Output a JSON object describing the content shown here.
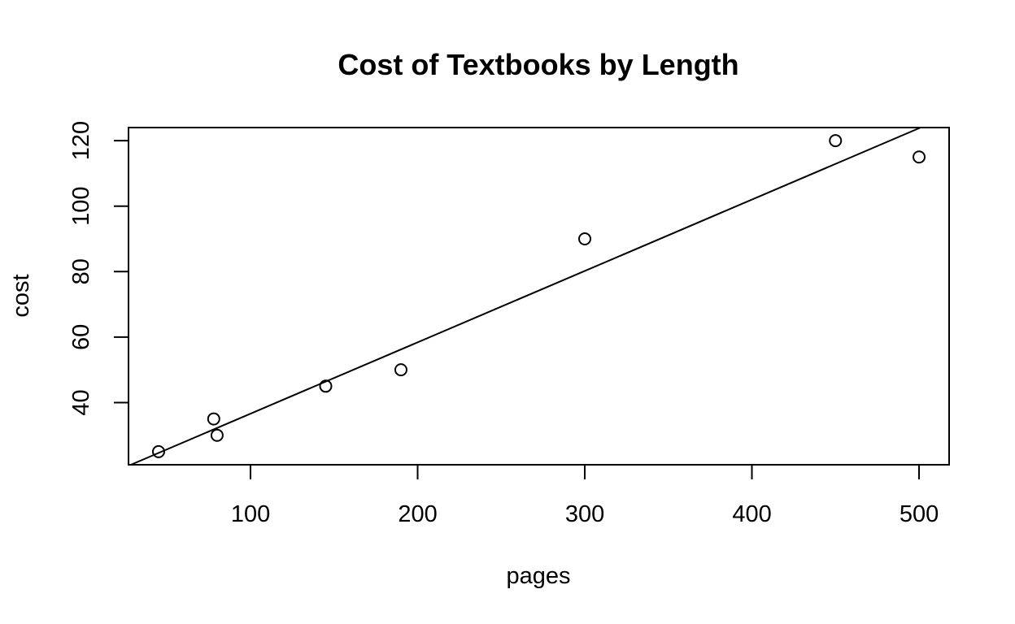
{
  "chart_data": {
    "type": "scatter",
    "title": "Cost of Textbooks by Length",
    "xlabel": "pages",
    "ylabel": "cost",
    "xlim": [
      27,
      518
    ],
    "ylim": [
      21,
      124
    ],
    "x_ticks": [
      100,
      200,
      300,
      400,
      500
    ],
    "y_ticks": [
      40,
      60,
      80,
      100,
      120
    ],
    "x_tick_labels": [
      "100",
      "200",
      "300",
      "400",
      "500"
    ],
    "y_tick_labels": [
      "40",
      "60",
      "80",
      "100",
      "120"
    ],
    "grid": false,
    "points": [
      {
        "x": 45,
        "y": 25
      },
      {
        "x": 78,
        "y": 35
      },
      {
        "x": 80,
        "y": 30
      },
      {
        "x": 145,
        "y": 45
      },
      {
        "x": 190,
        "y": 50
      },
      {
        "x": 300,
        "y": 90
      },
      {
        "x": 450,
        "y": 120
      },
      {
        "x": 500,
        "y": 115
      }
    ],
    "fit_line": {
      "intercept": 14.8,
      "slope": 0.218
    }
  }
}
